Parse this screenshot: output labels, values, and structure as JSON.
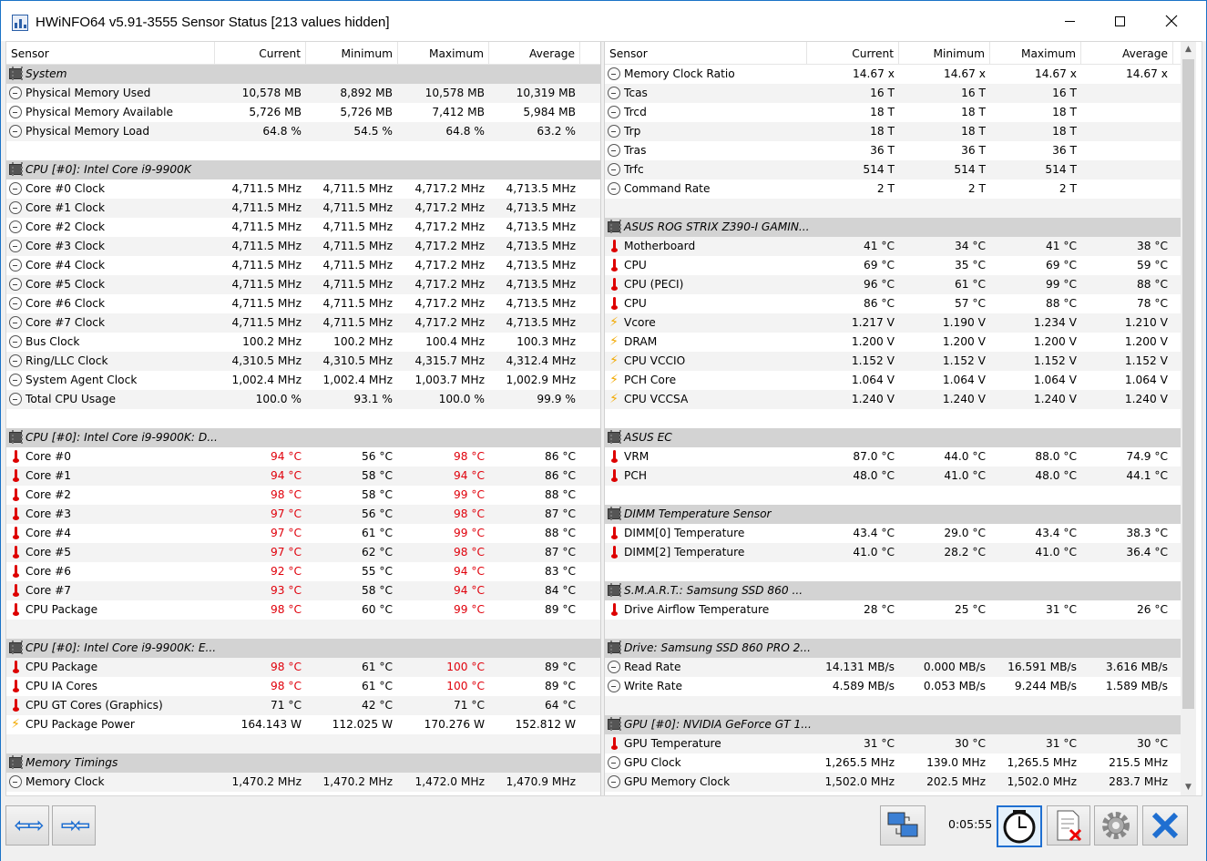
{
  "window": {
    "title": "HWiNFO64 v5.91-3555 Sensor Status [213 values hidden]",
    "elapsed": "0:05:55"
  },
  "columns": {
    "sensor": "Sensor",
    "current": "Current",
    "minimum": "Minimum",
    "maximum": "Maximum",
    "average": "Average"
  },
  "left_rows": [
    {
      "type": "group",
      "label": "System"
    },
    {
      "type": "row",
      "icon": "clock-icon",
      "label": "Physical Memory Used",
      "cur": "10,578 MB",
      "min": "8,892 MB",
      "max": "10,578 MB",
      "avg": "10,319 MB"
    },
    {
      "type": "row",
      "icon": "clock-icon",
      "label": "Physical Memory Available",
      "cur": "5,726 MB",
      "min": "5,726 MB",
      "max": "7,412 MB",
      "avg": "5,984 MB"
    },
    {
      "type": "row",
      "icon": "clock-icon",
      "label": "Physical Memory Load",
      "cur": "64.8 %",
      "min": "54.5 %",
      "max": "64.8 %",
      "avg": "63.2 %"
    },
    {
      "type": "blank"
    },
    {
      "type": "group",
      "label": "CPU [#0]: Intel Core i9-9900K"
    },
    {
      "type": "row",
      "icon": "clock-icon",
      "label": "Core #0 Clock",
      "cur": "4,711.5 MHz",
      "min": "4,711.5 MHz",
      "max": "4,717.2 MHz",
      "avg": "4,713.5 MHz"
    },
    {
      "type": "row",
      "icon": "clock-icon",
      "label": "Core #1 Clock",
      "cur": "4,711.5 MHz",
      "min": "4,711.5 MHz",
      "max": "4,717.2 MHz",
      "avg": "4,713.5 MHz"
    },
    {
      "type": "row",
      "icon": "clock-icon",
      "label": "Core #2 Clock",
      "cur": "4,711.5 MHz",
      "min": "4,711.5 MHz",
      "max": "4,717.2 MHz",
      "avg": "4,713.5 MHz"
    },
    {
      "type": "row",
      "icon": "clock-icon",
      "label": "Core #3 Clock",
      "cur": "4,711.5 MHz",
      "min": "4,711.5 MHz",
      "max": "4,717.2 MHz",
      "avg": "4,713.5 MHz"
    },
    {
      "type": "row",
      "icon": "clock-icon",
      "label": "Core #4 Clock",
      "cur": "4,711.5 MHz",
      "min": "4,711.5 MHz",
      "max": "4,717.2 MHz",
      "avg": "4,713.5 MHz"
    },
    {
      "type": "row",
      "icon": "clock-icon",
      "label": "Core #5 Clock",
      "cur": "4,711.5 MHz",
      "min": "4,711.5 MHz",
      "max": "4,717.2 MHz",
      "avg": "4,713.5 MHz"
    },
    {
      "type": "row",
      "icon": "clock-icon",
      "label": "Core #6 Clock",
      "cur": "4,711.5 MHz",
      "min": "4,711.5 MHz",
      "max": "4,717.2 MHz",
      "avg": "4,713.5 MHz"
    },
    {
      "type": "row",
      "icon": "clock-icon",
      "label": "Core #7 Clock",
      "cur": "4,711.5 MHz",
      "min": "4,711.5 MHz",
      "max": "4,717.2 MHz",
      "avg": "4,713.5 MHz"
    },
    {
      "type": "row",
      "icon": "clock-icon",
      "label": "Bus Clock",
      "cur": "100.2 MHz",
      "min": "100.2 MHz",
      "max": "100.4 MHz",
      "avg": "100.3 MHz"
    },
    {
      "type": "row",
      "icon": "clock-icon",
      "label": "Ring/LLC Clock",
      "cur": "4,310.5 MHz",
      "min": "4,310.5 MHz",
      "max": "4,315.7 MHz",
      "avg": "4,312.4 MHz"
    },
    {
      "type": "row",
      "icon": "clock-icon",
      "label": "System Agent Clock",
      "cur": "1,002.4 MHz",
      "min": "1,002.4 MHz",
      "max": "1,003.7 MHz",
      "avg": "1,002.9 MHz"
    },
    {
      "type": "row",
      "icon": "clock-icon",
      "label": "Total CPU Usage",
      "cur": "100.0 %",
      "min": "93.1 %",
      "max": "100.0 %",
      "avg": "99.9 %"
    },
    {
      "type": "blank"
    },
    {
      "type": "group",
      "label": "CPU [#0]: Intel Core i9-9900K: D..."
    },
    {
      "type": "row",
      "icon": "thermometer-icon",
      "label": "Core #0",
      "cur": "94 °C",
      "min": "56 °C",
      "max": "98 °C",
      "avg": "86 °C",
      "hot_cur": true,
      "hot_max": true
    },
    {
      "type": "row",
      "icon": "thermometer-icon",
      "label": "Core #1",
      "cur": "94 °C",
      "min": "58 °C",
      "max": "94 °C",
      "avg": "86 °C",
      "hot_cur": true,
      "hot_max": true
    },
    {
      "type": "row",
      "icon": "thermometer-icon",
      "label": "Core #2",
      "cur": "98 °C",
      "min": "58 °C",
      "max": "99 °C",
      "avg": "88 °C",
      "hot_cur": true,
      "hot_max": true
    },
    {
      "type": "row",
      "icon": "thermometer-icon",
      "label": "Core #3",
      "cur": "97 °C",
      "min": "56 °C",
      "max": "98 °C",
      "avg": "87 °C",
      "hot_cur": true,
      "hot_max": true
    },
    {
      "type": "row",
      "icon": "thermometer-icon",
      "label": "Core #4",
      "cur": "97 °C",
      "min": "61 °C",
      "max": "99 °C",
      "avg": "88 °C",
      "hot_cur": true,
      "hot_max": true
    },
    {
      "type": "row",
      "icon": "thermometer-icon",
      "label": "Core #5",
      "cur": "97 °C",
      "min": "62 °C",
      "max": "98 °C",
      "avg": "87 °C",
      "hot_cur": true,
      "hot_max": true
    },
    {
      "type": "row",
      "icon": "thermometer-icon",
      "label": "Core #6",
      "cur": "92 °C",
      "min": "55 °C",
      "max": "94 °C",
      "avg": "83 °C",
      "hot_cur": true,
      "hot_max": true
    },
    {
      "type": "row",
      "icon": "thermometer-icon",
      "label": "Core #7",
      "cur": "93 °C",
      "min": "58 °C",
      "max": "94 °C",
      "avg": "84 °C",
      "hot_cur": true,
      "hot_max": true
    },
    {
      "type": "row",
      "icon": "thermometer-icon",
      "label": "CPU Package",
      "cur": "98 °C",
      "min": "60 °C",
      "max": "99 °C",
      "avg": "89 °C",
      "hot_cur": true,
      "hot_max": true
    },
    {
      "type": "blank"
    },
    {
      "type": "group",
      "label": "CPU [#0]: Intel Core i9-9900K: E..."
    },
    {
      "type": "row",
      "icon": "thermometer-icon",
      "label": "CPU Package",
      "cur": "98 °C",
      "min": "61 °C",
      "max": "100 °C",
      "avg": "89 °C",
      "hot_cur": true,
      "hot_max": true
    },
    {
      "type": "row",
      "icon": "thermometer-icon",
      "label": "CPU IA Cores",
      "cur": "98 °C",
      "min": "61 °C",
      "max": "100 °C",
      "avg": "89 °C",
      "hot_cur": true,
      "hot_max": true
    },
    {
      "type": "row",
      "icon": "thermometer-icon",
      "label": "CPU GT Cores (Graphics)",
      "cur": "71 °C",
      "min": "42 °C",
      "max": "71 °C",
      "avg": "64 °C"
    },
    {
      "type": "row",
      "icon": "lightning-icon",
      "label": "CPU Package Power",
      "cur": "164.143 W",
      "min": "112.025 W",
      "max": "170.276 W",
      "avg": "152.812 W"
    },
    {
      "type": "blank"
    },
    {
      "type": "group",
      "label": "Memory Timings"
    },
    {
      "type": "row",
      "icon": "clock-icon",
      "label": "Memory Clock",
      "cur": "1,470.2 MHz",
      "min": "1,470.2 MHz",
      "max": "1,472.0 MHz",
      "avg": "1,470.9 MHz"
    }
  ],
  "right_rows": [
    {
      "type": "row",
      "icon": "clock-icon",
      "label": "Memory Clock Ratio",
      "cur": "14.67 x",
      "min": "14.67 x",
      "max": "14.67 x",
      "avg": "14.67 x"
    },
    {
      "type": "row",
      "icon": "clock-icon",
      "label": "Tcas",
      "cur": "16 T",
      "min": "16 T",
      "max": "16 T",
      "avg": ""
    },
    {
      "type": "row",
      "icon": "clock-icon",
      "label": "Trcd",
      "cur": "18 T",
      "min": "18 T",
      "max": "18 T",
      "avg": ""
    },
    {
      "type": "row",
      "icon": "clock-icon",
      "label": "Trp",
      "cur": "18 T",
      "min": "18 T",
      "max": "18 T",
      "avg": ""
    },
    {
      "type": "row",
      "icon": "clock-icon",
      "label": "Tras",
      "cur": "36 T",
      "min": "36 T",
      "max": "36 T",
      "avg": ""
    },
    {
      "type": "row",
      "icon": "clock-icon",
      "label": "Trfc",
      "cur": "514 T",
      "min": "514 T",
      "max": "514 T",
      "avg": ""
    },
    {
      "type": "row",
      "icon": "clock-icon",
      "label": "Command Rate",
      "cur": "2 T",
      "min": "2 T",
      "max": "2 T",
      "avg": ""
    },
    {
      "type": "blank"
    },
    {
      "type": "group",
      "label": "ASUS ROG STRIX Z390-I GAMIN..."
    },
    {
      "type": "row",
      "icon": "thermometer-icon",
      "label": "Motherboard",
      "cur": "41 °C",
      "min": "34 °C",
      "max": "41 °C",
      "avg": "38 °C"
    },
    {
      "type": "row",
      "icon": "thermometer-icon",
      "label": "CPU",
      "cur": "69 °C",
      "min": "35 °C",
      "max": "69 °C",
      "avg": "59 °C"
    },
    {
      "type": "row",
      "icon": "thermometer-icon",
      "label": "CPU (PECI)",
      "cur": "96 °C",
      "min": "61 °C",
      "max": "99 °C",
      "avg": "88 °C"
    },
    {
      "type": "row",
      "icon": "thermometer-icon",
      "label": "CPU",
      "cur": "86 °C",
      "min": "57 °C",
      "max": "88 °C",
      "avg": "78 °C"
    },
    {
      "type": "row",
      "icon": "lightning-icon",
      "label": "Vcore",
      "cur": "1.217 V",
      "min": "1.190 V",
      "max": "1.234 V",
      "avg": "1.210 V"
    },
    {
      "type": "row",
      "icon": "lightning-icon",
      "label": "DRAM",
      "cur": "1.200 V",
      "min": "1.200 V",
      "max": "1.200 V",
      "avg": "1.200 V"
    },
    {
      "type": "row",
      "icon": "lightning-icon",
      "label": "CPU VCCIO",
      "cur": "1.152 V",
      "min": "1.152 V",
      "max": "1.152 V",
      "avg": "1.152 V"
    },
    {
      "type": "row",
      "icon": "lightning-icon",
      "label": "PCH Core",
      "cur": "1.064 V",
      "min": "1.064 V",
      "max": "1.064 V",
      "avg": "1.064 V"
    },
    {
      "type": "row",
      "icon": "lightning-icon",
      "label": "CPU VCCSA",
      "cur": "1.240 V",
      "min": "1.240 V",
      "max": "1.240 V",
      "avg": "1.240 V"
    },
    {
      "type": "blank"
    },
    {
      "type": "group",
      "label": "ASUS EC"
    },
    {
      "type": "row",
      "icon": "thermometer-icon",
      "label": "VRM",
      "cur": "87.0 °C",
      "min": "44.0 °C",
      "max": "88.0 °C",
      "avg": "74.9 °C"
    },
    {
      "type": "row",
      "icon": "thermometer-icon",
      "label": "PCH",
      "cur": "48.0 °C",
      "min": "41.0 °C",
      "max": "48.0 °C",
      "avg": "44.1 °C"
    },
    {
      "type": "blank"
    },
    {
      "type": "group",
      "label": "DIMM Temperature Sensor"
    },
    {
      "type": "row",
      "icon": "thermometer-icon",
      "label": "DIMM[0] Temperature",
      "cur": "43.4 °C",
      "min": "29.0 °C",
      "max": "43.4 °C",
      "avg": "38.3 °C"
    },
    {
      "type": "row",
      "icon": "thermometer-icon",
      "label": "DIMM[2] Temperature",
      "cur": "41.0 °C",
      "min": "28.2 °C",
      "max": "41.0 °C",
      "avg": "36.4 °C"
    },
    {
      "type": "blank"
    },
    {
      "type": "group",
      "label": "S.M.A.R.T.: Samsung SSD 860 ..."
    },
    {
      "type": "row",
      "icon": "thermometer-icon",
      "label": "Drive Airflow Temperature",
      "cur": "28 °C",
      "min": "25 °C",
      "max": "31 °C",
      "avg": "26 °C"
    },
    {
      "type": "blank"
    },
    {
      "type": "group",
      "label": "Drive: Samsung SSD 860 PRO 2..."
    },
    {
      "type": "row",
      "icon": "clock-icon",
      "label": "Read Rate",
      "cur": "14.131 MB/s",
      "min": "0.000 MB/s",
      "max": "16.591 MB/s",
      "avg": "3.616 MB/s"
    },
    {
      "type": "row",
      "icon": "clock-icon",
      "label": "Write Rate",
      "cur": "4.589 MB/s",
      "min": "0.053 MB/s",
      "max": "9.244 MB/s",
      "avg": "1.589 MB/s"
    },
    {
      "type": "blank"
    },
    {
      "type": "group",
      "label": "GPU [#0]: NVIDIA GeForce GT 1..."
    },
    {
      "type": "row",
      "icon": "thermometer-icon",
      "label": "GPU Temperature",
      "cur": "31 °C",
      "min": "30 °C",
      "max": "31 °C",
      "avg": "30 °C"
    },
    {
      "type": "row",
      "icon": "clock-icon",
      "label": "GPU Clock",
      "cur": "1,265.5 MHz",
      "min": "139.0 MHz",
      "max": "1,265.5 MHz",
      "avg": "215.5 MHz"
    },
    {
      "type": "row",
      "icon": "clock-icon",
      "label": "GPU Memory Clock",
      "cur": "1,502.0 MHz",
      "min": "202.5 MHz",
      "max": "1,502.0 MHz",
      "avg": "283.7 MHz"
    }
  ],
  "toolbar": {
    "icons": [
      "expand-arrows-icon",
      "collapse-arrows-icon",
      "network-icon",
      "clock-icon",
      "reset-icon",
      "settings-icon",
      "close-icon"
    ]
  }
}
